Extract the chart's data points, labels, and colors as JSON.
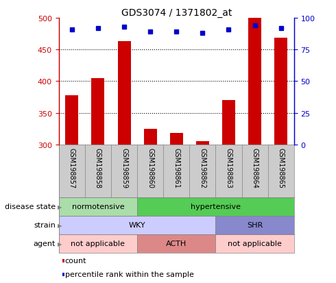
{
  "title": "GDS3074 / 1371802_at",
  "samples": [
    "GSM198857",
    "GSM198858",
    "GSM198859",
    "GSM198860",
    "GSM198861",
    "GSM198862",
    "GSM198863",
    "GSM198864",
    "GSM198865"
  ],
  "counts": [
    378,
    405,
    463,
    325,
    318,
    305,
    370,
    500,
    468
  ],
  "percentile_ranks": [
    91,
    92,
    93,
    89,
    89,
    88,
    91,
    94,
    92
  ],
  "ylim_left": [
    300,
    500
  ],
  "ylim_right": [
    0,
    100
  ],
  "yticks_left": [
    300,
    350,
    400,
    450,
    500
  ],
  "yticks_right": [
    0,
    25,
    50,
    75,
    100
  ],
  "bar_color": "#cc0000",
  "marker_color": "#0000cc",
  "bar_bottom": 300,
  "disease_state_segs": [
    {
      "label": "normotensive",
      "start": 0,
      "end": 3,
      "color": "#aaddaa"
    },
    {
      "label": "hypertensive",
      "start": 3,
      "end": 9,
      "color": "#55cc55"
    }
  ],
  "strain_segs": [
    {
      "label": "WKY",
      "start": 0,
      "end": 6,
      "color": "#ccccff"
    },
    {
      "label": "SHR",
      "start": 6,
      "end": 9,
      "color": "#8888cc"
    }
  ],
  "agent_segs": [
    {
      "label": "not applicable",
      "start": 0,
      "end": 3,
      "color": "#ffcccc"
    },
    {
      "label": "ACTH",
      "start": 3,
      "end": 6,
      "color": "#dd8888"
    },
    {
      "label": "not applicable",
      "start": 6,
      "end": 9,
      "color": "#ffcccc"
    }
  ],
  "sample_bg": "#cccccc",
  "left_axis_color": "#cc0000",
  "right_axis_color": "#0000cc",
  "grid_color": "#000000",
  "grid_linestyle": "dotted",
  "grid_linewidth": 0.8,
  "bar_width": 0.5,
  "marker_size": 5,
  "title_fontsize": 10,
  "tick_fontsize": 8,
  "label_fontsize": 8,
  "annot_fontsize": 8,
  "sample_fontsize": 7
}
